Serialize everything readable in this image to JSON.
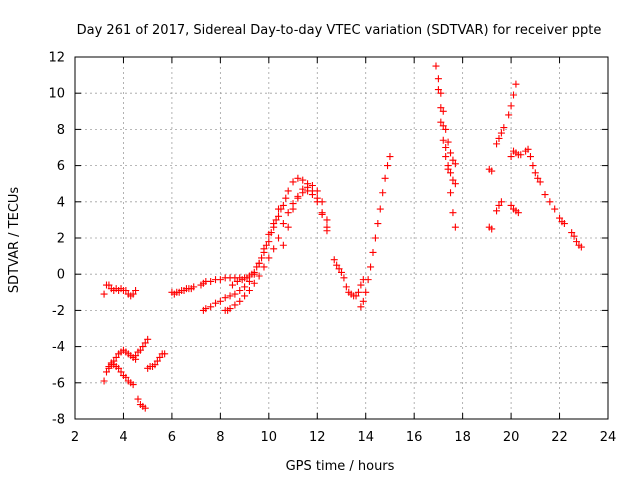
{
  "chart_data": {
    "type": "scatter",
    "title": "Day 261 of 2017, Sidereal Day-to-day VTEC variation (SDTVAR) for receiver ppte",
    "xlabel": "GPS time / hours",
    "ylabel": "SDTVAR / TECUs",
    "xlim": [
      2,
      24
    ],
    "ylim": [
      -8,
      12
    ],
    "xticks": [
      2,
      4,
      6,
      8,
      10,
      12,
      14,
      16,
      18,
      20,
      22,
      24
    ],
    "yticks": [
      -8,
      -6,
      -4,
      -2,
      0,
      2,
      4,
      6,
      8,
      10,
      12
    ],
    "xtick_labels": [
      "2",
      "4",
      "6",
      "8",
      "10",
      "12",
      "14",
      "16",
      "18",
      "20",
      "22",
      "24"
    ],
    "ytick_labels": [
      "-8",
      "-6",
      "-4",
      "-2",
      "0",
      "2",
      "4",
      "6",
      "8",
      "10",
      "12"
    ],
    "grid": true,
    "legend": null,
    "marker": "+",
    "color": "#ff0000",
    "series": [
      {
        "name": "seg01",
        "points": [
          [
            3.2,
            -1.1
          ],
          [
            3.3,
            -0.6
          ],
          [
            3.4,
            -0.6
          ],
          [
            3.5,
            -0.8
          ],
          [
            3.6,
            -0.9
          ],
          [
            3.7,
            -0.8
          ],
          [
            3.8,
            -0.9
          ],
          [
            3.9,
            -0.8
          ],
          [
            4.0,
            -0.9
          ],
          [
            4.1,
            -0.9
          ],
          [
            4.2,
            -1.1
          ],
          [
            4.3,
            -1.2
          ],
          [
            4.4,
            -1.1
          ],
          [
            4.5,
            -0.9
          ]
        ]
      },
      {
        "name": "seg02",
        "points": [
          [
            3.2,
            -5.9
          ],
          [
            3.3,
            -5.4
          ],
          [
            3.4,
            -5.1
          ],
          [
            3.5,
            -4.9
          ],
          [
            3.6,
            -4.8
          ],
          [
            3.7,
            -4.6
          ],
          [
            3.8,
            -4.4
          ],
          [
            3.9,
            -4.3
          ],
          [
            4.0,
            -4.2
          ],
          [
            4.1,
            -4.3
          ],
          [
            4.2,
            -4.4
          ],
          [
            4.3,
            -4.5
          ],
          [
            4.4,
            -4.6
          ],
          [
            4.5,
            -4.7
          ]
        ]
      },
      {
        "name": "seg03",
        "points": [
          [
            3.4,
            -5.2
          ],
          [
            3.5,
            -5.0
          ],
          [
            3.6,
            -5.0
          ],
          [
            3.7,
            -5.1
          ],
          [
            3.8,
            -5.2
          ],
          [
            3.9,
            -5.4
          ],
          [
            4.0,
            -5.6
          ],
          [
            4.1,
            -5.7
          ],
          [
            4.2,
            -5.9
          ],
          [
            4.3,
            -6.0
          ],
          [
            4.4,
            -6.1
          ]
        ]
      },
      {
        "name": "seg04",
        "points": [
          [
            4.5,
            -4.5
          ],
          [
            4.6,
            -4.3
          ],
          [
            4.7,
            -4.2
          ],
          [
            4.8,
            -4.0
          ],
          [
            4.9,
            -3.8
          ],
          [
            5.0,
            -3.6
          ]
        ]
      },
      {
        "name": "seg05",
        "points": [
          [
            4.6,
            -6.9
          ],
          [
            4.7,
            -7.2
          ],
          [
            4.8,
            -7.3
          ],
          [
            4.9,
            -7.4
          ]
        ]
      },
      {
        "name": "seg06",
        "points": [
          [
            5.0,
            -5.2
          ],
          [
            5.1,
            -5.1
          ],
          [
            5.2,
            -5.1
          ],
          [
            5.3,
            -5.0
          ],
          [
            5.4,
            -4.8
          ],
          [
            5.5,
            -4.6
          ],
          [
            5.6,
            -4.4
          ],
          [
            5.7,
            -4.4
          ]
        ]
      },
      {
        "name": "seg07",
        "points": [
          [
            6.0,
            -1.0
          ],
          [
            6.1,
            -1.1
          ],
          [
            6.2,
            -1.0
          ],
          [
            6.3,
            -1.0
          ],
          [
            6.4,
            -0.9
          ],
          [
            6.5,
            -0.9
          ],
          [
            6.6,
            -0.8
          ],
          [
            6.7,
            -0.8
          ],
          [
            6.8,
            -0.8
          ],
          [
            6.9,
            -0.7
          ]
        ]
      },
      {
        "name": "seg08",
        "points": [
          [
            7.2,
            -0.6
          ],
          [
            7.3,
            -0.5
          ],
          [
            7.4,
            -0.4
          ],
          [
            7.6,
            -0.4
          ],
          [
            7.8,
            -0.3
          ],
          [
            8.0,
            -0.3
          ],
          [
            8.2,
            -0.2
          ],
          [
            8.4,
            -0.2
          ],
          [
            8.6,
            -0.2
          ],
          [
            8.8,
            -0.2
          ],
          [
            9.0,
            -0.2
          ],
          [
            9.2,
            -0.1
          ],
          [
            9.4,
            0.1
          ],
          [
            9.6,
            0.6
          ],
          [
            9.8,
            1.2
          ],
          [
            10.0,
            1.8
          ],
          [
            10.2,
            2.6
          ],
          [
            10.4,
            3.2
          ],
          [
            10.6,
            3.8
          ],
          [
            10.8,
            4.6
          ],
          [
            11.0,
            5.1
          ],
          [
            11.2,
            5.3
          ],
          [
            11.4,
            5.2
          ],
          [
            11.6,
            5.0
          ],
          [
            11.8,
            4.9
          ],
          [
            12.0,
            4.6
          ],
          [
            12.2,
            4.0
          ],
          [
            12.4,
            3.0
          ]
        ]
      },
      {
        "name": "seg09",
        "points": [
          [
            7.3,
            -2.0
          ],
          [
            7.4,
            -1.9
          ],
          [
            7.6,
            -1.8
          ],
          [
            7.8,
            -1.6
          ],
          [
            8.0,
            -1.5
          ],
          [
            8.2,
            -1.3
          ],
          [
            8.4,
            -1.2
          ],
          [
            8.6,
            -1.1
          ],
          [
            8.8,
            -0.9
          ],
          [
            9.0,
            -0.7
          ],
          [
            9.2,
            -0.4
          ],
          [
            9.4,
            0.0
          ],
          [
            9.6,
            0.6
          ],
          [
            9.8,
            1.4
          ],
          [
            10.0,
            2.2
          ],
          [
            10.2,
            2.8
          ],
          [
            10.4,
            3.6
          ]
        ]
      },
      {
        "name": "seg10",
        "points": [
          [
            8.2,
            -2.0
          ],
          [
            8.3,
            -2.0
          ],
          [
            8.4,
            -1.9
          ],
          [
            8.6,
            -1.7
          ],
          [
            8.8,
            -1.5
          ],
          [
            9.0,
            -1.2
          ],
          [
            9.2,
            -0.9
          ],
          [
            9.4,
            -0.5
          ],
          [
            9.6,
            -0.1
          ],
          [
            9.8,
            0.4
          ],
          [
            10.0,
            0.9
          ],
          [
            10.2,
            1.4
          ],
          [
            10.4,
            2.0
          ],
          [
            10.6,
            2.8
          ],
          [
            10.8,
            3.4
          ],
          [
            11.0,
            3.9
          ],
          [
            11.2,
            4.2
          ],
          [
            11.4,
            4.5
          ],
          [
            11.6,
            4.6
          ],
          [
            11.8,
            4.4
          ],
          [
            12.0,
            4.0
          ],
          [
            12.2,
            3.3
          ],
          [
            12.4,
            2.6
          ]
        ]
      },
      {
        "name": "seg11",
        "points": [
          [
            8.5,
            -0.6
          ],
          [
            8.7,
            -0.4
          ],
          [
            8.9,
            -0.3
          ],
          [
            9.1,
            -0.2
          ],
          [
            9.3,
            0.0
          ],
          [
            9.5,
            0.4
          ],
          [
            9.7,
            0.9
          ],
          [
            9.9,
            1.6
          ],
          [
            10.1,
            2.3
          ],
          [
            10.3,
            3.0
          ],
          [
            10.5,
            3.6
          ],
          [
            10.7,
            4.2
          ]
        ]
      },
      {
        "name": "seg12",
        "points": [
          [
            10.6,
            1.6
          ],
          [
            10.8,
            2.6
          ],
          [
            11.0,
            3.6
          ],
          [
            11.2,
            4.3
          ],
          [
            11.4,
            4.7
          ],
          [
            11.6,
            4.8
          ],
          [
            11.8,
            4.6
          ],
          [
            12.0,
            4.2
          ],
          [
            12.2,
            3.4
          ],
          [
            12.4,
            2.4
          ]
        ]
      },
      {
        "name": "seg13",
        "points": [
          [
            12.7,
            0.8
          ],
          [
            12.8,
            0.5
          ],
          [
            12.9,
            0.3
          ],
          [
            13.0,
            0.1
          ],
          [
            13.1,
            -0.2
          ],
          [
            13.2,
            -0.7
          ],
          [
            13.3,
            -1.0
          ],
          [
            13.4,
            -1.1
          ],
          [
            13.5,
            -1.2
          ],
          [
            13.6,
            -1.2
          ],
          [
            13.7,
            -1.0
          ],
          [
            13.8,
            -0.6
          ],
          [
            13.9,
            -0.3
          ]
        ]
      },
      {
        "name": "seg14",
        "points": [
          [
            13.8,
            -1.8
          ],
          [
            13.9,
            -1.5
          ],
          [
            14.0,
            -1.0
          ],
          [
            14.1,
            -0.3
          ],
          [
            14.2,
            0.4
          ],
          [
            14.3,
            1.2
          ],
          [
            14.4,
            2.0
          ],
          [
            14.5,
            2.8
          ],
          [
            14.6,
            3.6
          ],
          [
            14.7,
            4.5
          ],
          [
            14.8,
            5.3
          ],
          [
            14.9,
            6.0
          ],
          [
            15.0,
            6.5
          ]
        ]
      },
      {
        "name": "seg15",
        "points": [
          [
            16.9,
            11.5
          ],
          [
            17.0,
            10.8
          ],
          [
            17.1,
            10.0
          ],
          [
            17.2,
            9.0
          ],
          [
            17.3,
            8.0
          ],
          [
            17.4,
            7.3
          ],
          [
            17.5,
            6.7
          ],
          [
            17.6,
            6.3
          ],
          [
            17.7,
            6.1
          ]
        ]
      },
      {
        "name": "seg16",
        "points": [
          [
            17.0,
            10.2
          ],
          [
            17.1,
            9.2
          ],
          [
            17.2,
            8.2
          ],
          [
            17.3,
            7.0
          ],
          [
            17.4,
            5.8
          ],
          [
            17.5,
            4.5
          ],
          [
            17.6,
            3.4
          ],
          [
            17.7,
            2.6
          ]
        ]
      },
      {
        "name": "seg17",
        "points": [
          [
            17.1,
            8.4
          ],
          [
            17.2,
            7.4
          ],
          [
            17.3,
            6.5
          ],
          [
            17.4,
            6.0
          ],
          [
            17.5,
            5.6
          ],
          [
            17.6,
            5.2
          ],
          [
            17.7,
            5.0
          ]
        ]
      },
      {
        "name": "seg18",
        "points": [
          [
            19.1,
            2.6
          ],
          [
            19.2,
            2.5
          ],
          [
            19.1,
            5.8
          ],
          [
            19.2,
            5.7
          ]
        ]
      },
      {
        "name": "seg19",
        "points": [
          [
            19.4,
            3.5
          ],
          [
            19.5,
            3.8
          ],
          [
            19.6,
            4.0
          ],
          [
            19.4,
            7.2
          ],
          [
            19.5,
            7.5
          ],
          [
            19.6,
            7.8
          ],
          [
            19.7,
            8.1
          ]
        ]
      },
      {
        "name": "seg20",
        "points": [
          [
            19.9,
            8.8
          ],
          [
            20.0,
            9.3
          ],
          [
            20.1,
            9.9
          ],
          [
            20.2,
            10.5
          ]
        ]
      },
      {
        "name": "seg21",
        "points": [
          [
            20.0,
            6.5
          ],
          [
            20.1,
            6.8
          ],
          [
            20.2,
            6.7
          ],
          [
            20.3,
            6.6
          ],
          [
            20.4,
            6.6
          ],
          [
            20.6,
            6.8
          ],
          [
            20.7,
            6.9
          ],
          [
            20.8,
            6.5
          ],
          [
            20.9,
            6.0
          ],
          [
            21.0,
            5.6
          ],
          [
            21.1,
            5.3
          ],
          [
            21.2,
            5.1
          ]
        ]
      },
      {
        "name": "seg22",
        "points": [
          [
            20.0,
            3.8
          ],
          [
            20.1,
            3.6
          ],
          [
            20.2,
            3.5
          ],
          [
            20.3,
            3.4
          ]
        ]
      },
      {
        "name": "seg23",
        "points": [
          [
            21.4,
            4.4
          ],
          [
            21.6,
            4.0
          ],
          [
            21.8,
            3.6
          ],
          [
            22.0,
            3.1
          ],
          [
            22.1,
            2.9
          ],
          [
            22.2,
            2.8
          ]
        ]
      },
      {
        "name": "seg24",
        "points": [
          [
            22.5,
            2.3
          ],
          [
            22.6,
            2.1
          ],
          [
            22.7,
            1.8
          ],
          [
            22.8,
            1.6
          ],
          [
            22.9,
            1.5
          ]
        ]
      }
    ]
  }
}
